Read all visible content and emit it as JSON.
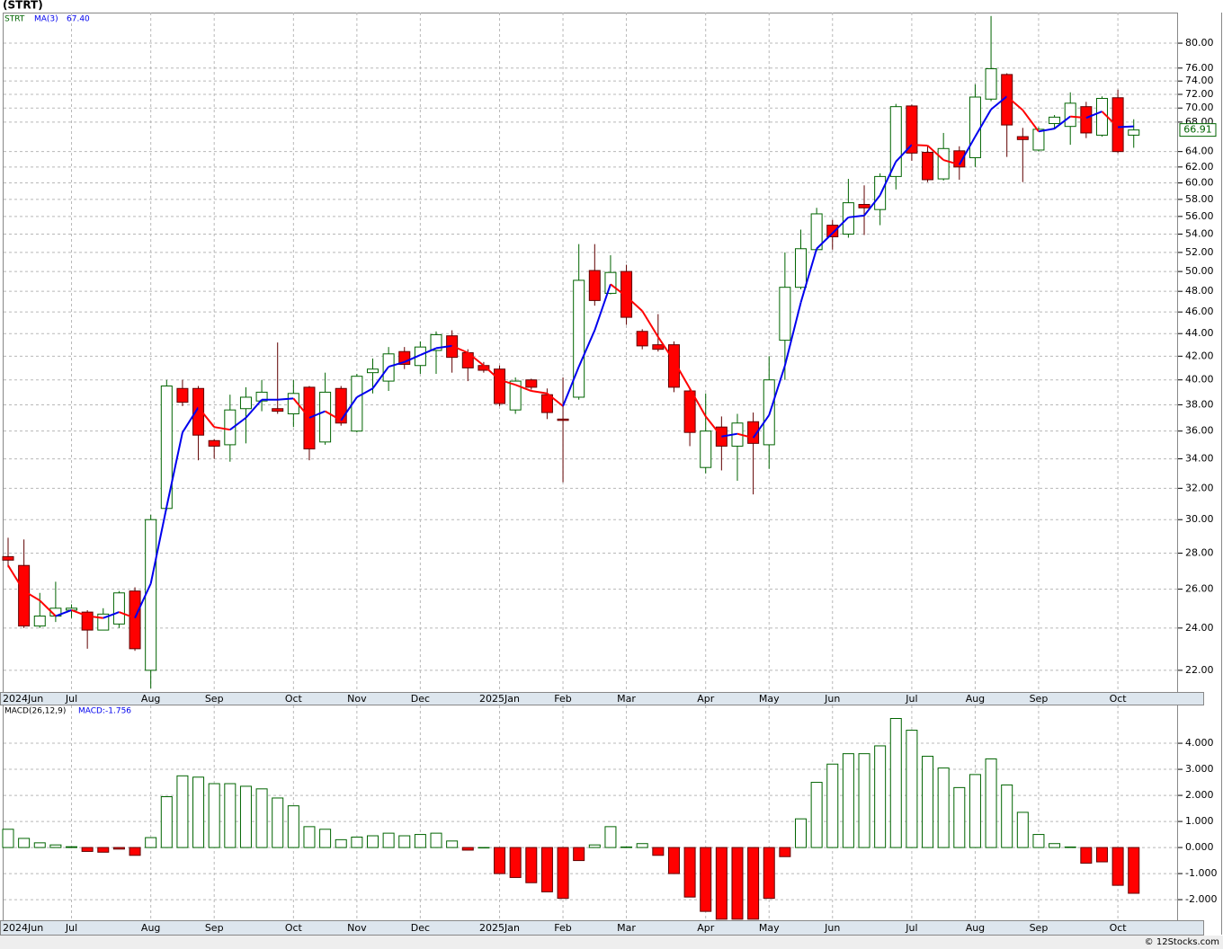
{
  "chart_data": [
    {
      "type": "candlestick",
      "title": "(STRT)",
      "symbol": "STRT",
      "ma_name": "MA(3)",
      "ma_last": "67.40",
      "categories": [
        "2024Jun",
        null,
        null,
        null,
        "Jul",
        null,
        null,
        null,
        null,
        "Aug",
        null,
        null,
        null,
        "Sep",
        null,
        null,
        null,
        null,
        "Oct",
        null,
        null,
        null,
        "Nov",
        null,
        null,
        null,
        "Dec",
        null,
        null,
        null,
        null,
        "2025Jan",
        null,
        null,
        null,
        "Feb",
        null,
        null,
        null,
        "Mar",
        null,
        null,
        null,
        null,
        "Apr",
        null,
        null,
        null,
        "May",
        null,
        null,
        null,
        "Jun",
        null,
        null,
        null,
        null,
        "Jul",
        null,
        null,
        null,
        "Aug",
        null,
        null,
        null,
        "Sep",
        null,
        null,
        null,
        null,
        "Oct",
        null
      ],
      "open": [
        27.8,
        27.3,
        24.1,
        24.6,
        24.9,
        24.8,
        23.9,
        24.2,
        25.9,
        22.0,
        30.7,
        39.3,
        39.3,
        35.3,
        35.0,
        37.7,
        38.3,
        37.7,
        37.3,
        39.4,
        35.2,
        39.3,
        36.0,
        40.6,
        39.9,
        42.4,
        41.2,
        42.5,
        43.8,
        42.3,
        41.2,
        40.9,
        37.6,
        40.0,
        38.8,
        36.9,
        38.6,
        50.1,
        47.8,
        50.0,
        44.2,
        43.0,
        43.0,
        39.1,
        33.4,
        36.3,
        34.9,
        36.7,
        35.0,
        43.4,
        48.4,
        52.3,
        55.0,
        54.0,
        57.4,
        56.8,
        60.8,
        70.3,
        63.9,
        60.5,
        64.1,
        63.2,
        71.3,
        75.0,
        66.0,
        64.2,
        67.8,
        67.4,
        70.2,
        66.2,
        71.5,
        66.2
      ],
      "high": [
        28.9,
        28.8,
        25.8,
        26.4,
        25.2,
        24.9,
        25.0,
        25.9,
        26.1,
        30.3,
        40.0,
        40.0,
        39.5,
        35.4,
        38.8,
        39.4,
        40.0,
        43.2,
        40.0,
        39.5,
        40.6,
        39.5,
        40.5,
        41.8,
        42.8,
        42.8,
        43.3,
        44.2,
        44.3,
        42.6,
        41.5,
        41.2,
        40.2,
        40.1,
        39.3,
        40.2,
        52.9,
        52.9,
        51.7,
        50.7,
        44.4,
        45.8,
        43.3,
        39.3,
        38.9,
        37.1,
        37.3,
        37.4,
        42.0,
        52.0,
        54.5,
        57.0,
        55.6,
        60.5,
        59.7,
        61.2,
        70.6,
        70.5,
        64.8,
        66.5,
        64.7,
        73.5,
        84.6,
        75.2,
        67.2,
        67.3,
        69.0,
        72.3,
        70.9,
        71.7,
        72.7,
        68.4
      ],
      "low": [
        27.2,
        24.0,
        24.0,
        24.3,
        24.5,
        23.0,
        23.9,
        24.0,
        22.9,
        21.2,
        30.6,
        37.9,
        33.9,
        34.0,
        33.8,
        35.1,
        37.5,
        37.3,
        36.3,
        33.9,
        35.0,
        36.4,
        35.9,
        38.9,
        39.1,
        40.9,
        40.5,
        40.5,
        40.6,
        39.9,
        40.6,
        37.9,
        37.3,
        39.2,
        36.9,
        32.4,
        38.4,
        46.6,
        47.7,
        44.8,
        42.6,
        42.4,
        39.0,
        34.9,
        33.0,
        33.2,
        32.5,
        31.6,
        33.3,
        40.0,
        48.2,
        52.1,
        52.3,
        53.6,
        53.9,
        55.0,
        59.2,
        62.8,
        60.1,
        60.3,
        60.4,
        62.0,
        71.0,
        63.3,
        60.1,
        64.0,
        67.0,
        64.9,
        65.8,
        66.0,
        63.8,
        64.5
      ],
      "close": [
        27.6,
        24.1,
        24.6,
        25.0,
        25.0,
        23.9,
        24.7,
        25.8,
        23.0,
        30.0,
        39.5,
        38.2,
        35.7,
        34.9,
        37.6,
        38.6,
        39.0,
        37.5,
        38.9,
        34.7,
        39.0,
        36.6,
        40.3,
        40.9,
        42.2,
        41.3,
        42.8,
        43.9,
        41.9,
        41.0,
        40.8,
        38.1,
        39.9,
        39.4,
        37.4,
        36.8,
        49.1,
        47.1,
        49.9,
        45.5,
        42.9,
        42.6,
        39.4,
        35.9,
        36.0,
        34.9,
        36.6,
        35.1,
        40.0,
        48.4,
        52.4,
        56.3,
        53.7,
        57.6,
        57.0,
        60.8,
        70.2,
        63.8,
        60.4,
        64.4,
        62.0,
        71.6,
        75.9,
        67.6,
        65.6,
        67.0,
        68.7,
        70.7,
        66.5,
        71.4,
        64.0,
        66.91
      ],
      "ma": [
        27.3,
        25.9,
        25.4,
        24.6,
        24.9,
        24.6,
        24.5,
        24.8,
        24.5,
        26.3,
        30.8,
        35.9,
        37.8,
        36.3,
        36.1,
        37.0,
        38.4,
        38.4,
        38.5,
        37.0,
        37.5,
        36.8,
        38.6,
        39.3,
        41.1,
        41.5,
        42.1,
        42.7,
        42.9,
        42.3,
        41.2,
        40.0,
        39.6,
        39.1,
        38.9,
        37.9,
        41.1,
        44.3,
        48.7,
        47.5,
        46.1,
        43.7,
        41.6,
        39.3,
        37.1,
        35.6,
        35.8,
        35.5,
        37.2,
        41.2,
        46.9,
        52.4,
        54.1,
        55.9,
        56.1,
        58.5,
        62.7,
        64.9,
        64.8,
        62.9,
        62.3,
        66.0,
        69.8,
        71.7,
        69.7,
        66.7,
        67.1,
        68.8,
        68.6,
        69.5,
        67.3,
        67.4
      ],
      "up_color": "#006400",
      "down_color": "#ff0000",
      "ma_up_color": "#0000ee",
      "ma_down_color": "#ff0000",
      "log_scale": true,
      "grid": true,
      "ylim": [
        21.04,
        85.2
      ],
      "yticks": [
        {
          "value": 22,
          "label": "22.00"
        },
        {
          "value": 24,
          "label": "24.00"
        },
        {
          "value": 26,
          "label": "26.00"
        },
        {
          "value": 28,
          "label": "28.00"
        },
        {
          "value": 30,
          "label": "30.00"
        },
        {
          "value": 32,
          "label": "32.00"
        },
        {
          "value": 34,
          "label": "34.00"
        },
        {
          "value": 36,
          "label": "36.00"
        },
        {
          "value": 38,
          "label": "38.00"
        },
        {
          "value": 40,
          "label": "40.00"
        },
        {
          "value": 42,
          "label": "42.00"
        },
        {
          "value": 44,
          "label": "44.00"
        },
        {
          "value": 46,
          "label": "46.00"
        },
        {
          "value": 48,
          "label": "48.00"
        },
        {
          "value": 50,
          "label": "50.00"
        },
        {
          "value": 52,
          "label": "52.00"
        },
        {
          "value": 54,
          "label": "54.00"
        },
        {
          "value": 56,
          "label": "56.00"
        },
        {
          "value": 58,
          "label": "58.00"
        },
        {
          "value": 60,
          "label": "60.00"
        },
        {
          "value": 62,
          "label": "62.00"
        },
        {
          "value": 64,
          "label": "64.00"
        },
        {
          "value": 68,
          "label": "68.00"
        },
        {
          "value": 70,
          "label": "70.00"
        },
        {
          "value": 72,
          "label": "72.00"
        },
        {
          "value": 74,
          "label": "74.00"
        },
        {
          "value": 76,
          "label": "76.00"
        },
        {
          "value": 80,
          "label": "80.00"
        }
      ]
    },
    {
      "type": "bar",
      "name": "MACD(26,12,9)",
      "value_text": "MACD:-1.756",
      "values": [
        0.7,
        0.35,
        0.18,
        0.1,
        0.03,
        -0.15,
        -0.18,
        -0.06,
        -0.3,
        0.38,
        1.95,
        2.75,
        2.7,
        2.45,
        2.45,
        2.35,
        2.25,
        1.9,
        1.6,
        0.8,
        0.7,
        0.3,
        0.4,
        0.45,
        0.55,
        0.45,
        0.5,
        0.55,
        0.25,
        -0.1,
        0,
        -1.0,
        -1.15,
        -1.35,
        -1.7,
        -1.95,
        -0.5,
        0.1,
        0.8,
        0.02,
        0.15,
        -0.3,
        -1.0,
        -1.9,
        -2.45,
        -2.75,
        -2.75,
        -2.75,
        -1.95,
        -0.35,
        1.1,
        2.5,
        3.2,
        3.6,
        3.6,
        3.9,
        4.95,
        4.5,
        3.5,
        3.05,
        2.3,
        2.8,
        3.4,
        2.4,
        1.35,
        0.5,
        0.15,
        0.02,
        -0.6,
        -0.55,
        -1.45,
        -1.756
      ],
      "pos_color": "#006400",
      "neg_color": "#ff0000",
      "grid": true,
      "ylim": [
        -2.79,
        5.45
      ],
      "yticks": [
        {
          "value": 4,
          "label": "4.000"
        },
        {
          "value": 3,
          "label": "3.000"
        },
        {
          "value": 2,
          "label": "2.000"
        },
        {
          "value": 1,
          "label": "1.000"
        },
        {
          "value": 0,
          "label": "0.000"
        },
        {
          "value": -1,
          "label": "-1.000"
        },
        {
          "value": -2,
          "label": "-2.000"
        }
      ]
    }
  ],
  "footer": "© 12Stocks.com"
}
